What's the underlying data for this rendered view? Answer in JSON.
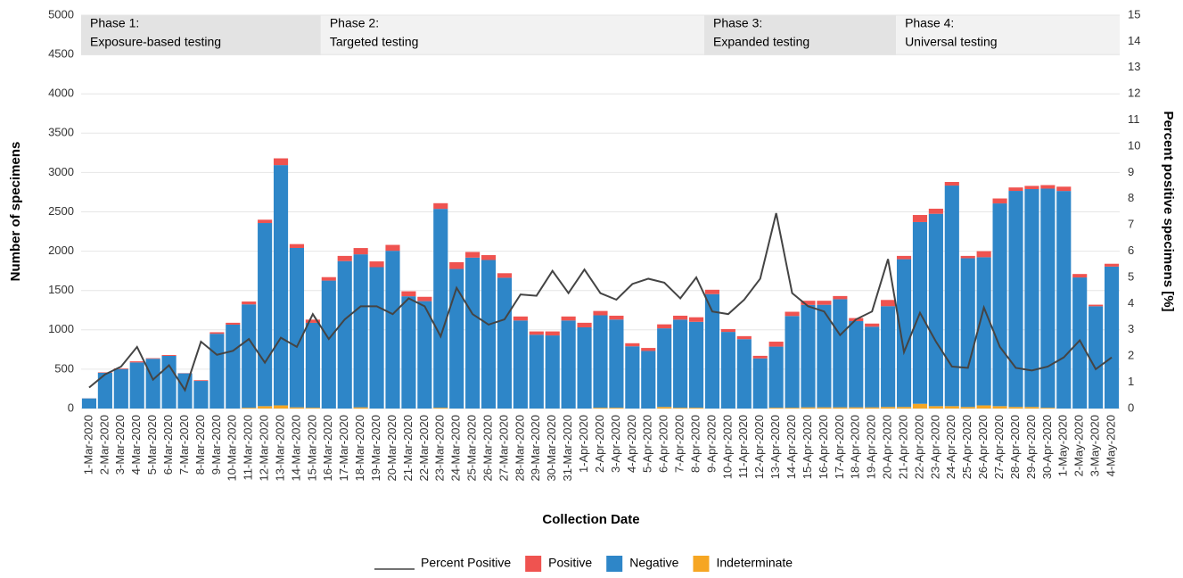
{
  "chart_data": {
    "type": "bar",
    "x_label": "Collection Date",
    "y_label": "Number of specimens",
    "y2_label": "Percent positive specimens [%]",
    "categories": [
      "1-Mar-2020",
      "2-Mar-2020",
      "3-Mar-2020",
      "4-Mar-2020",
      "5-Mar-2020",
      "6-Mar-2020",
      "7-Mar-2020",
      "8-Mar-2020",
      "9-Mar-2020",
      "10-Mar-2020",
      "11-Mar-2020",
      "12-Mar-2020",
      "13-Mar-2020",
      "14-Mar-2020",
      "15-Mar-2020",
      "16-Mar-2020",
      "17-Mar-2020",
      "18-Mar-2020",
      "19-Mar-2020",
      "20-Mar-2020",
      "21-Mar-2020",
      "22-Mar-2020",
      "23-Mar-2020",
      "24-Mar-2020",
      "25-Mar-2020",
      "26-Mar-2020",
      "27-Mar-2020",
      "28-Mar-2020",
      "29-Mar-2020",
      "30-Mar-2020",
      "31-Mar-2020",
      "1-Apr-2020",
      "2-Apr-2020",
      "3-Apr-2020",
      "4-Apr-2020",
      "5-Apr-2020",
      "6-Apr-2020",
      "7-Apr-2020",
      "8-Apr-2020",
      "9-Apr-2020",
      "10-Apr-2020",
      "11-Apr-2020",
      "12-Apr-2020",
      "13-Apr-2020",
      "14-Apr-2020",
      "15-Apr-2020",
      "16-Apr-2020",
      "17-Apr-2020",
      "18-Apr-2020",
      "19-Apr-2020",
      "20-Apr-2020",
      "21-Apr-2020",
      "22-Apr-2020",
      "23-Apr-2020",
      "24-Apr-2020",
      "25-Apr-2020",
      "26-Apr-2020",
      "27-Apr-2020",
      "28-Apr-2020",
      "29-Apr-2020",
      "30-Apr-2020",
      "1-May-2020",
      "2-May-2020",
      "3-May-2020",
      "4-May-2020"
    ],
    "series": [
      {
        "name": "Positive",
        "color": "#ef5350",
        "values": [
          1,
          6,
          8,
          14,
          7,
          11,
          3,
          9,
          20,
          24,
          36,
          42,
          86,
          49,
          41,
          44,
          66,
          80,
          73,
          75,
          63,
          55,
          72,
          86,
          72,
          62,
          58,
          51,
          42,
          51,
          51,
          58,
          55,
          49,
          39,
          38,
          51,
          50,
          58,
          56,
          36,
          38,
          33,
          63,
          54,
          53,
          51,
          40,
          39,
          40,
          79,
          42,
          90,
          65,
          46,
          30,
          77,
          63,
          44,
          41,
          45,
          55,
          44,
          20,
          36
        ]
      },
      {
        "name": "Negative",
        "color": "#2e86c8",
        "values": [
          129,
          454,
          502,
          586,
          633,
          669,
          447,
          351,
          950,
          1066,
          1314,
          2328,
          3054,
          2026,
          1079,
          1626,
          1874,
          1945,
          1797,
          2005,
          1427,
          1365,
          2528,
          1774,
          1918,
          1888,
          1662,
          1119,
          938,
          929,
          1119,
          1032,
          1175,
          1121,
          791,
          732,
          999,
          1120,
          1092,
          1454,
          974,
          882,
          637,
          777,
          1166,
          1302,
          1304,
          1375,
          1096,
          1025,
          1281,
          1878,
          2310,
          2445,
          2804,
          1890,
          1883,
          2577,
          2746,
          2769,
          2785,
          2765,
          1666,
          1300,
          1804
        ]
      },
      {
        "name": "Indeterminate",
        "color": "#f6a623",
        "values": [
          0,
          0,
          0,
          0,
          0,
          0,
          0,
          0,
          0,
          0,
          10,
          30,
          40,
          15,
          10,
          0,
          0,
          15,
          0,
          0,
          0,
          0,
          10,
          0,
          0,
          0,
          0,
          0,
          0,
          0,
          0,
          0,
          10,
          10,
          0,
          0,
          20,
          10,
          10,
          0,
          0,
          0,
          0,
          10,
          10,
          15,
          15,
          15,
          15,
          15,
          20,
          20,
          60,
          30,
          30,
          20,
          40,
          30,
          20,
          20,
          10,
          0,
          0,
          0,
          0
        ]
      },
      {
        "name": "Percent Positive",
        "type": "line",
        "axis": "y2",
        "color": "#444444",
        "values": [
          0.8,
          1.3,
          1.6,
          2.35,
          1.1,
          1.65,
          0.7,
          2.55,
          2.05,
          2.2,
          2.65,
          1.75,
          2.7,
          2.35,
          3.6,
          2.65,
          3.4,
          3.9,
          3.9,
          3.6,
          4.2,
          3.9,
          2.75,
          4.6,
          3.6,
          3.2,
          3.4,
          4.35,
          4.3,
          5.25,
          4.4,
          5.3,
          4.4,
          4.15,
          4.75,
          4.95,
          4.8,
          4.2,
          5.0,
          3.7,
          3.6,
          4.15,
          4.95,
          7.45,
          4.4,
          3.9,
          3.7,
          2.8,
          3.4,
          3.7,
          5.7,
          2.15,
          3.65,
          2.55,
          1.6,
          1.55,
          3.85,
          2.35,
          1.55,
          1.45,
          1.6,
          1.95,
          2.6,
          1.5,
          1.95
        ]
      }
    ],
    "phases": [
      {
        "title": "Phase 1:",
        "label": "Exposure-based testing",
        "start": "1-Mar-2020",
        "end": "15-Mar-2020",
        "color": "#e3e3e3"
      },
      {
        "title": "Phase 2:",
        "label": "Targeted testing",
        "start": "16-Mar-2020",
        "end": "8-Apr-2020",
        "color": "#f2f2f2"
      },
      {
        "title": "Phase 3:",
        "label": "Expanded testing",
        "start": "9-Apr-2020",
        "end": "20-Apr-2020",
        "color": "#e3e3e3"
      },
      {
        "title": "Phase 4:",
        "label": "Universal testing",
        "start": "21-Apr-2020",
        "end": "4-May-2020",
        "color": "#f2f2f2"
      }
    ],
    "ylim": [
      0,
      5000
    ],
    "yticks": [
      0,
      500,
      1000,
      1500,
      2000,
      2500,
      3000,
      3500,
      4000,
      4500,
      5000
    ],
    "y2lim": [
      0,
      15
    ],
    "y2ticks": [
      0,
      1,
      2,
      3,
      4,
      5,
      6,
      7,
      8,
      9,
      10,
      11,
      12,
      13,
      14,
      15
    ],
    "grid": true,
    "legend": "bottom"
  }
}
